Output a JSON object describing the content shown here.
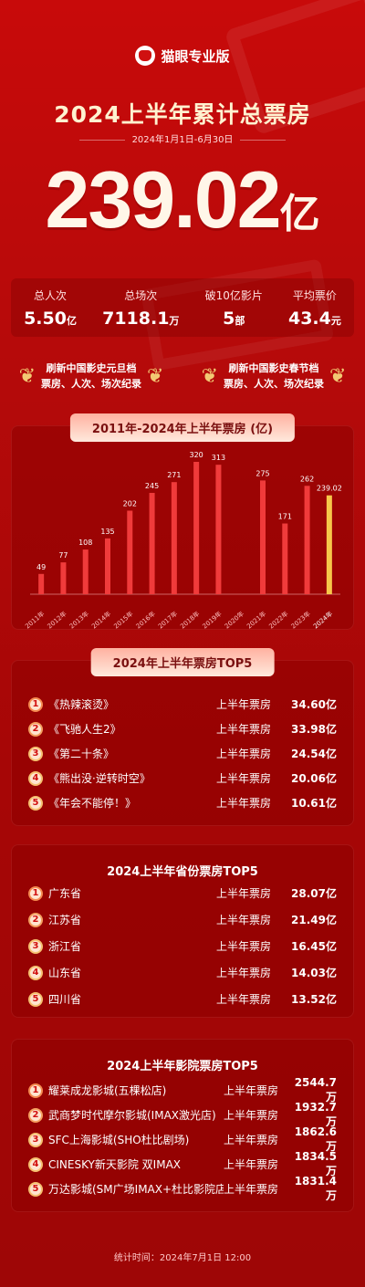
{
  "brand": {
    "name": "猫眼专业版"
  },
  "header": {
    "title": "2024上半年累计总票房",
    "date_range": "2024年1月1日-6月30日",
    "total": "239.02",
    "total_unit": "亿"
  },
  "stats": [
    {
      "label": "总人次",
      "value": "5.50",
      "unit": "亿"
    },
    {
      "label": "总场次",
      "value": "7118.1",
      "unit": "万"
    },
    {
      "label": "破10亿影片",
      "value": "5",
      "unit": "部"
    },
    {
      "label": "平均票价",
      "value": "43.4",
      "unit": "元"
    }
  ],
  "records": [
    {
      "line1": "刷新中国影史元旦档",
      "line2": "票房、人次、场次纪录"
    },
    {
      "line1": "刷新中国影史春节档",
      "line2": "票房、人次、场次纪录"
    }
  ],
  "chart_data": {
    "type": "bar",
    "title": "2011年-2024年上半年票房 (亿)",
    "categories": [
      "2011年",
      "2012年",
      "2013年",
      "2014年",
      "2015年",
      "2016年",
      "2017年",
      "2018年",
      "2019年",
      "2020年",
      "2021年",
      "2022年",
      "2023年",
      "2024年"
    ],
    "values": [
      49,
      77,
      108,
      135,
      202,
      245,
      271,
      320,
      313,
      0,
      275,
      171,
      262,
      239.02
    ],
    "labels": [
      "49",
      "77",
      "108",
      "135",
      "202",
      "245",
      "271",
      "320",
      "313",
      "",
      "275",
      "171",
      "262",
      "239.02"
    ],
    "highlight_index": 13,
    "colors": {
      "bar": "#f03b3b",
      "highlight": "#f7c64a"
    }
  },
  "top_films": {
    "title": "2024年上半年票房TOP5",
    "items": [
      {
        "rank": "1",
        "name": "《热辣滚烫》",
        "metric": "上半年票房",
        "value": "34.60亿"
      },
      {
        "rank": "2",
        "name": "《飞驰人生2》",
        "metric": "上半年票房",
        "value": "33.98亿"
      },
      {
        "rank": "3",
        "name": "《第二十条》",
        "metric": "上半年票房",
        "value": "24.54亿"
      },
      {
        "rank": "4",
        "name": "《熊出没·逆转时空》",
        "metric": "上半年票房",
        "value": "20.06亿"
      },
      {
        "rank": "5",
        "name": "《年会不能停！》",
        "metric": "上半年票房",
        "value": "10.61亿"
      }
    ]
  },
  "top_provinces": {
    "title": "2024上半年省份票房TOP5",
    "items": [
      {
        "rank": "1",
        "name": "广东省",
        "metric": "上半年票房",
        "value": "28.07亿"
      },
      {
        "rank": "2",
        "name": "江苏省",
        "metric": "上半年票房",
        "value": "21.49亿"
      },
      {
        "rank": "3",
        "name": "浙江省",
        "metric": "上半年票房",
        "value": "16.45亿"
      },
      {
        "rank": "4",
        "name": "山东省",
        "metric": "上半年票房",
        "value": "14.03亿"
      },
      {
        "rank": "5",
        "name": "四川省",
        "metric": "上半年票房",
        "value": "13.52亿"
      }
    ]
  },
  "top_cinemas": {
    "title": "2024上半年影院票房TOP5",
    "items": [
      {
        "rank": "1",
        "name": "耀莱成龙影城(五棵松店)",
        "metric": "上半年票房",
        "value": "2544.7万"
      },
      {
        "rank": "2",
        "name": "武商梦时代摩尔影城(IMAX激光店)",
        "metric": "上半年票房",
        "value": "1932.7万"
      },
      {
        "rank": "3",
        "name": "SFC上海影城(SHO杜比剧场)",
        "metric": "上半年票房",
        "value": "1862.6万"
      },
      {
        "rank": "4",
        "name": "CINESKY新天影院 双IMAX",
        "metric": "上半年票房",
        "value": "1834.5万"
      },
      {
        "rank": "5",
        "name": "万达影城(SM广场IMAX+杜比影院店)",
        "metric": "上半年票房",
        "value": "1831.4万"
      }
    ]
  },
  "footer": {
    "text": "统计时间：2024年7月1日  12:00"
  }
}
